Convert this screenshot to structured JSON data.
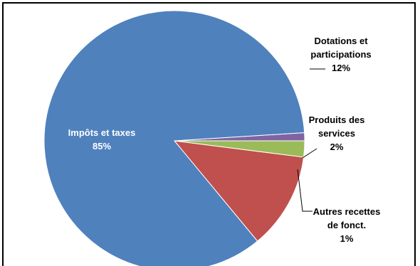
{
  "chart_data": {
    "type": "pie",
    "title": "",
    "legend": "none",
    "start_angle_deg": -50.4,
    "direction": "counterclockwise",
    "slices": [
      {
        "label": "Dotations et participations",
        "value_label": "12%",
        "value": 12,
        "color": "#C0504D",
        "label_lines": [
          "Dotations et",
          "participations",
          "12%"
        ]
      },
      {
        "label": "Produits des services",
        "value_label": "2%",
        "value": 2,
        "color": "#9BBB59",
        "label_lines": [
          "Produits des",
          "services",
          "2%"
        ]
      },
      {
        "label": "Autres recettes de fonct.",
        "value_label": "1%",
        "value": 1,
        "color": "#8064A2",
        "label_lines": [
          "Autres recettes",
          "de fonct.",
          "1%"
        ]
      },
      {
        "label": "Impôts et taxes",
        "value_label": "85%",
        "value": 85,
        "color": "#4F81BD",
        "label_lines": [
          "Impôts et taxes",
          "85%"
        ]
      }
    ]
  }
}
